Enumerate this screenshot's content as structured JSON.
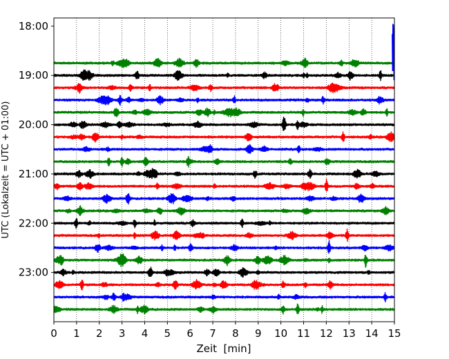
{
  "chart_data": {
    "type": "line",
    "title": "",
    "xlabel": "Zeit  [min]",
    "ylabel": "UTC (Lokalzeit = UTC + 01:00)",
    "xlim": [
      0,
      15
    ],
    "ylim_minutes_utc": [
      1070,
      1440
    ],
    "x_ticks": [
      0,
      1,
      2,
      3,
      4,
      5,
      6,
      7,
      8,
      9,
      10,
      11,
      12,
      13,
      14,
      15
    ],
    "y_ticks": [
      "18:00",
      "19:00",
      "20:00",
      "21:00",
      "22:00",
      "23:00"
    ],
    "grid": "vertical-dotted",
    "legend": "none",
    "color_cycle": [
      "#008000",
      "#000000",
      "#ff0000",
      "#0000ff"
    ],
    "trace_interval_min": 15,
    "traces": [
      {
        "time": "18:45",
        "color": "#008000"
      },
      {
        "time": "19:00",
        "color": "#000000"
      },
      {
        "time": "19:15",
        "color": "#ff0000"
      },
      {
        "time": "19:30",
        "color": "#0000ff"
      },
      {
        "time": "19:45",
        "color": "#008000"
      },
      {
        "time": "20:00",
        "color": "#000000"
      },
      {
        "time": "20:15",
        "color": "#ff0000"
      },
      {
        "time": "20:30",
        "color": "#0000ff"
      },
      {
        "time": "20:45",
        "color": "#008000"
      },
      {
        "time": "21:00",
        "color": "#000000"
      },
      {
        "time": "21:15",
        "color": "#ff0000"
      },
      {
        "time": "21:30",
        "color": "#0000ff"
      },
      {
        "time": "21:45",
        "color": "#008000"
      },
      {
        "time": "22:00",
        "color": "#000000"
      },
      {
        "time": "22:15",
        "color": "#ff0000"
      },
      {
        "time": "22:30",
        "color": "#0000ff"
      },
      {
        "time": "22:45",
        "color": "#008000"
      },
      {
        "time": "23:00",
        "color": "#000000"
      },
      {
        "time": "23:15",
        "color": "#ff0000"
      },
      {
        "time": "23:30",
        "color": "#0000ff"
      },
      {
        "time": "23:45",
        "color": "#008000"
      }
    ],
    "partial_trace": {
      "time": "18:30",
      "color": "#0000ff",
      "x_start_min": 14.9
    }
  }
}
